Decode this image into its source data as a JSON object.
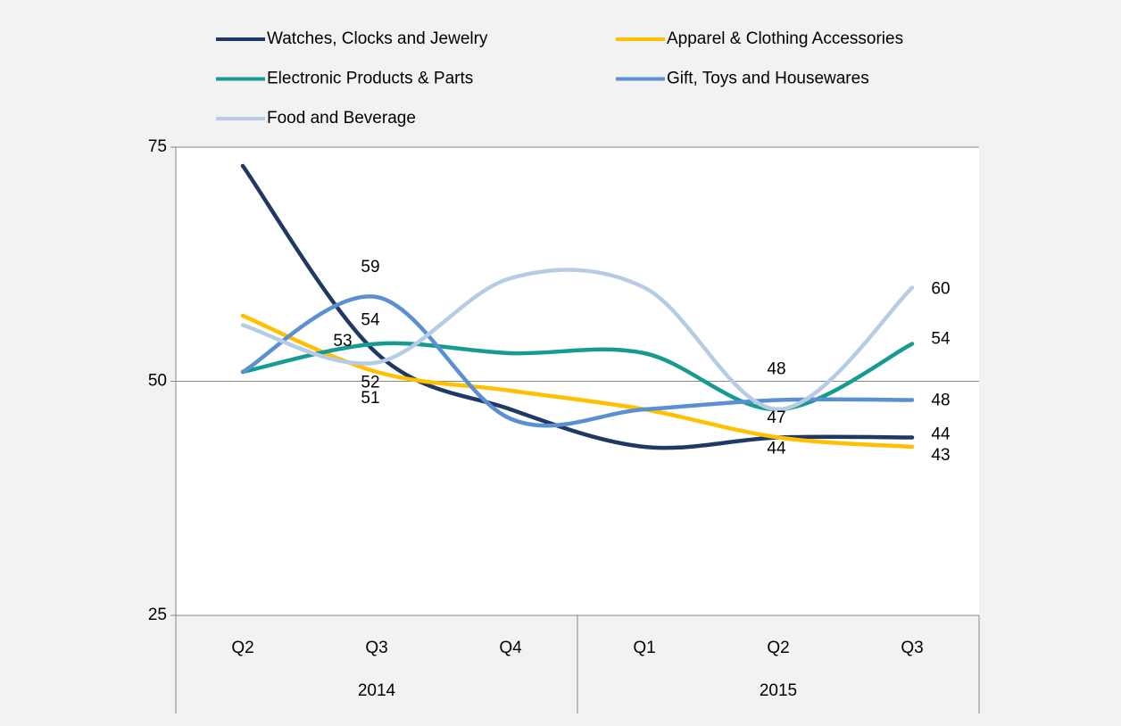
{
  "chart_data": {
    "type": "line",
    "categories": [
      "Q2",
      "Q3",
      "Q4",
      "Q1",
      "Q2",
      "Q3"
    ],
    "groups": [
      {
        "label": "2014",
        "span": 3
      },
      {
        "label": "2015",
        "span": 3
      }
    ],
    "ylim": [
      25,
      75
    ],
    "yticks": [
      25,
      50,
      75
    ],
    "grid": true,
    "smooth": true,
    "legend": "top",
    "series": [
      {
        "name": "Watches, Clocks and Jewelry",
        "color": "#1f3864",
        "values": [
          73,
          53,
          47,
          43,
          44,
          44
        ],
        "value_labels": [
          null,
          "53",
          null,
          null,
          null,
          "44"
        ]
      },
      {
        "name": "Apparel & Clothing Accessories",
        "color": "#ffc000",
        "values": [
          57,
          51,
          49,
          47,
          44,
          43
        ],
        "value_labels": [
          null,
          "51",
          null,
          null,
          "44",
          "43"
        ]
      },
      {
        "name": "Electronic Products & Parts",
        "color": "#169b93",
        "values": [
          51,
          54,
          53,
          53,
          47,
          54
        ],
        "value_labels": [
          null,
          "54",
          null,
          null,
          "47",
          "54"
        ]
      },
      {
        "name": "Gift, Toys and Housewares",
        "color": "#5b8fd4",
        "values": [
          51,
          59,
          46,
          47,
          48,
          48
        ],
        "value_labels": [
          null,
          "59",
          null,
          null,
          "48",
          "48"
        ]
      },
      {
        "name": "Food and Beverage",
        "color": "#b7cce4",
        "values": [
          56,
          52,
          61,
          60,
          47,
          60
        ],
        "value_labels": [
          null,
          "52",
          null,
          null,
          null,
          "60"
        ]
      }
    ]
  }
}
